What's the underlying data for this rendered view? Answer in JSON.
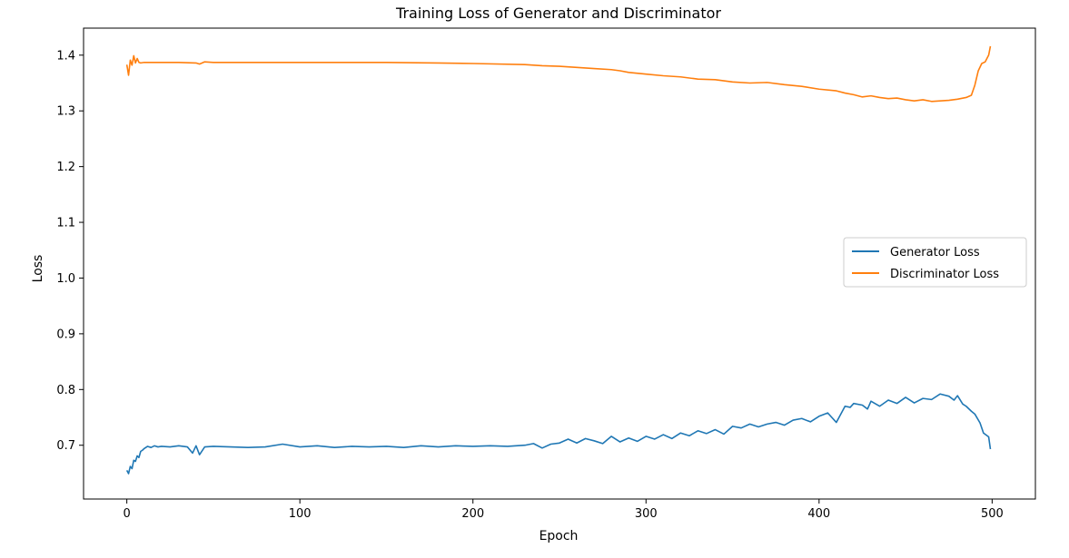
{
  "chart_data": {
    "type": "line",
    "title": "Training Loss of Generator and Discriminator",
    "xlabel": "Epoch",
    "ylabel": "Loss",
    "xlim": [
      -25,
      525
    ],
    "ylim": [
      0.6035,
      1.4485
    ],
    "xticks": [
      0,
      100,
      200,
      300,
      400,
      500
    ],
    "xtick_labels": [
      "0",
      "100",
      "200",
      "300",
      "400",
      "500"
    ],
    "yticks": [
      0.7,
      0.8,
      0.9,
      1.0,
      1.1,
      1.2,
      1.3,
      1.4
    ],
    "ytick_labels": [
      "0.7",
      "0.8",
      "0.9",
      "1.0",
      "1.1",
      "1.2",
      "1.3",
      "1.4"
    ],
    "grid": false,
    "legend": {
      "position": "center-right"
    },
    "series": [
      {
        "name": "Generator Loss",
        "color": "#1f77b4",
        "x": [
          0,
          1,
          2,
          3,
          4,
          5,
          6,
          7,
          8,
          9,
          10,
          12,
          14,
          16,
          18,
          20,
          25,
          30,
          35,
          38,
          40,
          42,
          45,
          50,
          60,
          70,
          80,
          90,
          100,
          110,
          120,
          130,
          140,
          150,
          160,
          170,
          180,
          190,
          200,
          210,
          220,
          230,
          235,
          240,
          245,
          250,
          255,
          260,
          265,
          270,
          275,
          280,
          285,
          290,
          295,
          300,
          305,
          310,
          315,
          320,
          325,
          330,
          335,
          340,
          345,
          350,
          355,
          360,
          365,
          370,
          375,
          380,
          385,
          390,
          395,
          400,
          405,
          410,
          415,
          418,
          420,
          425,
          428,
          430,
          435,
          440,
          445,
          450,
          455,
          460,
          465,
          470,
          475,
          478,
          480,
          483,
          485,
          488,
          490,
          493,
          495,
          498,
          499
        ],
        "y": [
          0.655,
          0.649,
          0.662,
          0.658,
          0.673,
          0.671,
          0.681,
          0.678,
          0.689,
          0.691,
          0.694,
          0.698,
          0.696,
          0.699,
          0.697,
          0.698,
          0.697,
          0.699,
          0.697,
          0.686,
          0.699,
          0.683,
          0.697,
          0.698,
          0.697,
          0.696,
          0.697,
          0.702,
          0.697,
          0.699,
          0.696,
          0.698,
          0.697,
          0.698,
          0.696,
          0.699,
          0.697,
          0.699,
          0.698,
          0.699,
          0.698,
          0.7,
          0.703,
          0.695,
          0.702,
          0.704,
          0.711,
          0.704,
          0.712,
          0.708,
          0.703,
          0.716,
          0.706,
          0.713,
          0.707,
          0.716,
          0.711,
          0.719,
          0.712,
          0.722,
          0.717,
          0.726,
          0.721,
          0.728,
          0.72,
          0.734,
          0.731,
          0.738,
          0.733,
          0.738,
          0.741,
          0.736,
          0.745,
          0.748,
          0.742,
          0.752,
          0.758,
          0.741,
          0.77,
          0.768,
          0.775,
          0.772,
          0.765,
          0.779,
          0.77,
          0.781,
          0.775,
          0.786,
          0.776,
          0.784,
          0.782,
          0.792,
          0.788,
          0.781,
          0.789,
          0.774,
          0.77,
          0.761,
          0.756,
          0.74,
          0.722,
          0.715,
          0.693
        ]
      },
      {
        "name": "Discriminator Loss",
        "color": "#ff7f0e",
        "x": [
          0,
          1,
          2,
          3,
          4,
          5,
          6,
          7,
          8,
          10,
          15,
          20,
          30,
          40,
          42,
          45,
          50,
          100,
          150,
          180,
          200,
          230,
          240,
          250,
          260,
          270,
          280,
          285,
          290,
          300,
          310,
          320,
          330,
          340,
          350,
          360,
          370,
          380,
          390,
          400,
          410,
          415,
          420,
          425,
          430,
          435,
          440,
          445,
          450,
          455,
          460,
          465,
          470,
          475,
          480,
          485,
          488,
          490,
          492,
          494,
          496,
          498,
          499
        ],
        "y": [
          1.383,
          1.364,
          1.391,
          1.382,
          1.399,
          1.386,
          1.394,
          1.387,
          1.386,
          1.387,
          1.387,
          1.387,
          1.387,
          1.386,
          1.384,
          1.388,
          1.387,
          1.387,
          1.387,
          1.386,
          1.385,
          1.383,
          1.381,
          1.38,
          1.378,
          1.376,
          1.374,
          1.372,
          1.369,
          1.366,
          1.363,
          1.361,
          1.357,
          1.356,
          1.352,
          1.35,
          1.351,
          1.347,
          1.344,
          1.339,
          1.336,
          1.332,
          1.329,
          1.325,
          1.327,
          1.324,
          1.322,
          1.323,
          1.32,
          1.318,
          1.32,
          1.317,
          1.318,
          1.319,
          1.321,
          1.324,
          1.328,
          1.346,
          1.372,
          1.385,
          1.388,
          1.4,
          1.416
        ]
      }
    ]
  }
}
